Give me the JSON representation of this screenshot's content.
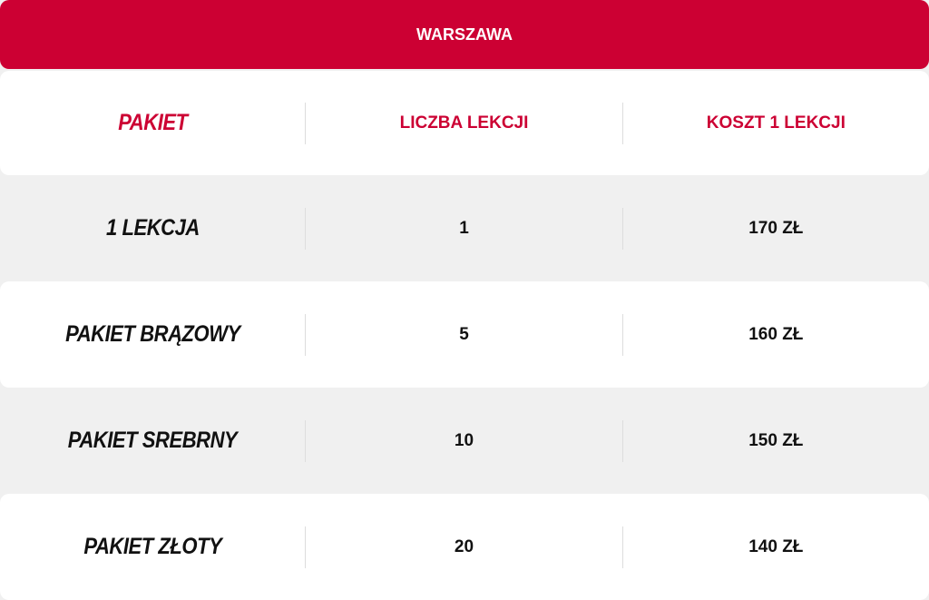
{
  "title": "WARSZAWA",
  "columns": [
    "PAKIET",
    "LICZBA LEKCJI",
    "KOSZT 1 LEKCJI"
  ],
  "rows": [
    {
      "name": "1 LEKCJA",
      "lessons": "1",
      "price": "170 ZŁ"
    },
    {
      "name": "PAKIET BRĄZOWY",
      "lessons": "5",
      "price": "160 ZŁ"
    },
    {
      "name": "PAKIET SREBRNY",
      "lessons": "10",
      "price": "150 ZŁ"
    },
    {
      "name": "PAKIET ZŁOTY",
      "lessons": "20",
      "price": "140 ZŁ"
    }
  ],
  "colors": {
    "accent": "#cc0033",
    "row_alt": "#f0f0f0",
    "row": "#ffffff"
  }
}
